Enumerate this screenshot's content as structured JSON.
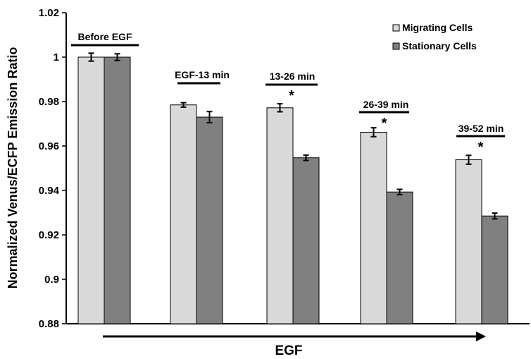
{
  "chart_data": {
    "type": "bar",
    "title": "",
    "xlabel": "EGF",
    "ylabel": "Normalized Venus/ECFP Emission Ratio",
    "ylim": [
      0.88,
      1.02
    ],
    "yticks": [
      "0.88",
      "0.9",
      "0.92",
      "0.94",
      "0.96",
      "0.98",
      "1",
      "1.02"
    ],
    "categories": [
      "Before EGF",
      "EGF-13 min",
      "13-26 min",
      "26-39 min",
      "39-52 min"
    ],
    "significance": [
      "",
      "",
      "*",
      "*",
      "*"
    ],
    "series": [
      {
        "name": "Migrating Cells",
        "values": [
          1.0,
          0.9785,
          0.9772,
          0.9662,
          0.9538
        ],
        "errors": [
          0.0018,
          0.001,
          0.0018,
          0.002,
          0.002
        ],
        "color": "#d9d9d9"
      },
      {
        "name": "Stationary Cells",
        "values": [
          1.0,
          0.973,
          0.9547,
          0.9393,
          0.9285
        ],
        "errors": [
          0.0015,
          0.0025,
          0.0012,
          0.0012,
          0.0013
        ],
        "color": "#808080"
      }
    ],
    "legend_position": "top-right",
    "grid": false,
    "arrow_under_x_axis": true
  }
}
